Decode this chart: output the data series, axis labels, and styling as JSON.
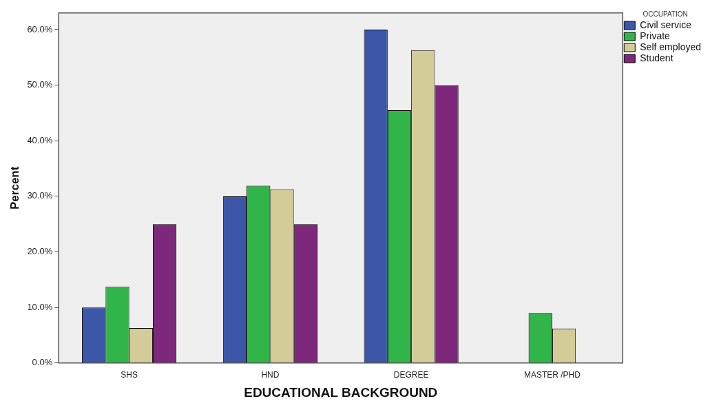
{
  "chart_data": {
    "type": "bar",
    "xlabel": "EDUCATIONAL BACKGROUND",
    "ylabel": "Percent",
    "legend_title": "OCCUPATION",
    "legend": "top right",
    "grid": false,
    "categories": [
      "SHS",
      "HND",
      "DEGREE",
      "MASTER /PHD"
    ],
    "series": [
      {
        "name": "Civil service",
        "color": "#3d57a8",
        "values": [
          10,
          30,
          60,
          0
        ]
      },
      {
        "name": "Private",
        "color": "#31b548",
        "values": [
          13.7,
          31.9,
          45.5,
          9.0
        ]
      },
      {
        "name": "Self employed",
        "color": "#d3cc98",
        "values": [
          6.3,
          31.3,
          56.3,
          6.2
        ]
      },
      {
        "name": "Student",
        "color": "#7d287b",
        "values": [
          25,
          25,
          50,
          0
        ]
      }
    ],
    "ylim": [
      0,
      63
    ],
    "yticks": [
      {
        "value": 0,
        "label": "0.0%"
      },
      {
        "value": 10,
        "label": "10.0%"
      },
      {
        "value": 20,
        "label": "20.0%"
      },
      {
        "value": 30,
        "label": "30.0%"
      },
      {
        "value": 40,
        "label": "40.0%"
      },
      {
        "value": 50,
        "label": "50.0%"
      },
      {
        "value": 60,
        "label": "60.0%"
      }
    ]
  }
}
